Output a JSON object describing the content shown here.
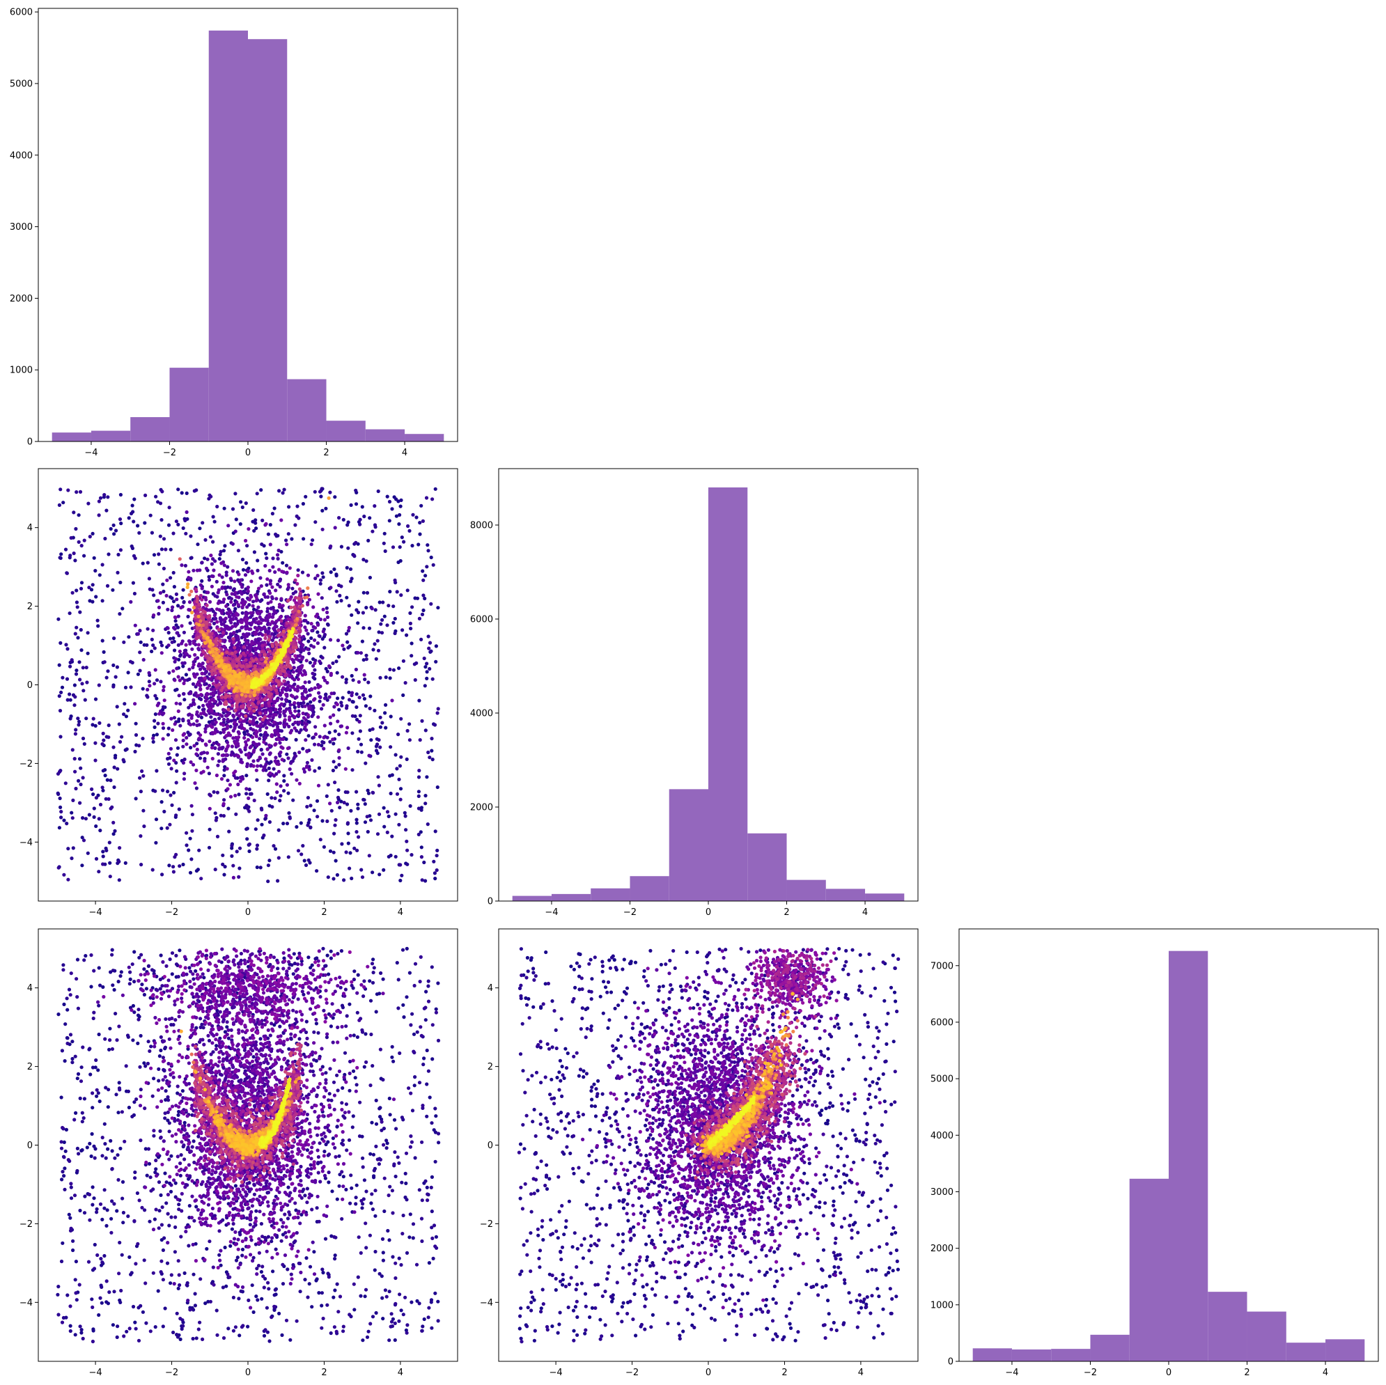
{
  "colors": {
    "bar": "#9467bd",
    "scatter_colormap": "plasma",
    "axes_edge": "#000000",
    "background": "#ffffff"
  },
  "chart_data": [
    {
      "panel": "row1-col1",
      "type": "bar",
      "xlim": [
        -5.35,
        5.35
      ],
      "ylim": [
        0,
        6050
      ],
      "xticks": [
        -4,
        -2,
        0,
        2,
        4
      ],
      "yticks": [
        0,
        1000,
        2000,
        3000,
        4000,
        5000,
        6000
      ],
      "bin_edges": [
        -5,
        -4,
        -3,
        -2,
        -1,
        0,
        1,
        2,
        3,
        4,
        5
      ],
      "values": [
        125,
        150,
        340,
        1030,
        5740,
        5620,
        870,
        290,
        170,
        105
      ],
      "title": "",
      "xlabel": "",
      "ylabel": ""
    },
    {
      "panel": "row2-col1",
      "type": "scatter",
      "xlim": [
        -5.5,
        5.5
      ],
      "ylim": [
        -5.5,
        5.5
      ],
      "xticks": [
        -4,
        -2,
        0,
        2,
        4
      ],
      "yticks": [
        -4,
        -2,
        0,
        2,
        4
      ],
      "point_count": 6000,
      "colormap": "plasma",
      "pattern": "dense banana-shaped ridge y ≈ x² for |x| < 1.4 with bright core near (0, 0) and (1, 1); diffuse cloud around it; sparse uniform background over [-5, 5]",
      "title": "",
      "xlabel": "",
      "ylabel": ""
    },
    {
      "panel": "row2-col2",
      "type": "bar",
      "xlim": [
        -5.35,
        5.35
      ],
      "ylim": [
        0,
        9200
      ],
      "xticks": [
        -4,
        -2,
        0,
        2,
        4
      ],
      "yticks": [
        0,
        2000,
        4000,
        6000,
        8000
      ],
      "bin_edges": [
        -5,
        -4,
        -3,
        -2,
        -1,
        0,
        1,
        2,
        3,
        4,
        5
      ],
      "values": [
        110,
        150,
        270,
        530,
        2380,
        8800,
        1440,
        450,
        260,
        160
      ],
      "title": "",
      "xlabel": "",
      "ylabel": ""
    },
    {
      "panel": "row3-col1",
      "type": "scatter",
      "xlim": [
        -5.5,
        5.5
      ],
      "ylim": [
        -5.5,
        5.5
      ],
      "xticks": [
        -4,
        -2,
        0,
        2,
        4
      ],
      "yticks": [
        -4,
        -2,
        0,
        2,
        4
      ],
      "point_count": 6000,
      "colormap": "plasma",
      "pattern": "dense ridge y ≈ x² near origin with bright arm rising toward (1, 1.5); secondary faint band near y ≈ 4; sparse uniform background over [-5, 5]",
      "title": "",
      "xlabel": "",
      "ylabel": ""
    },
    {
      "panel": "row3-col2",
      "type": "scatter",
      "xlim": [
        -5.5,
        5.5
      ],
      "ylim": [
        -5.5,
        5.5
      ],
      "xticks": [
        -4,
        -2,
        0,
        2,
        4
      ],
      "yticks": [
        -4,
        -2,
        0,
        2,
        4
      ],
      "point_count": 6000,
      "colormap": "plasma",
      "pattern": "dense curved ridge from (0, 0) rising to (2, 2.5) and continuing to (2.3, 4.3); bright core along the ridge; sparse uniform background over [-5, 5]",
      "title": "",
      "xlabel": "",
      "ylabel": ""
    },
    {
      "panel": "row3-col3",
      "type": "bar",
      "xlim": [
        -5.35,
        5.35
      ],
      "ylim": [
        0,
        7650
      ],
      "xticks": [
        -4,
        -2,
        0,
        2,
        4
      ],
      "yticks": [
        0,
        1000,
        2000,
        3000,
        4000,
        5000,
        6000,
        7000
      ],
      "bin_edges": [
        -5,
        -4,
        -3,
        -2,
        -1,
        0,
        1,
        2,
        3,
        4,
        5
      ],
      "values": [
        230,
        210,
        220,
        470,
        3230,
        7260,
        1230,
        880,
        330,
        390
      ],
      "title": "",
      "xlabel": "",
      "ylabel": ""
    }
  ]
}
